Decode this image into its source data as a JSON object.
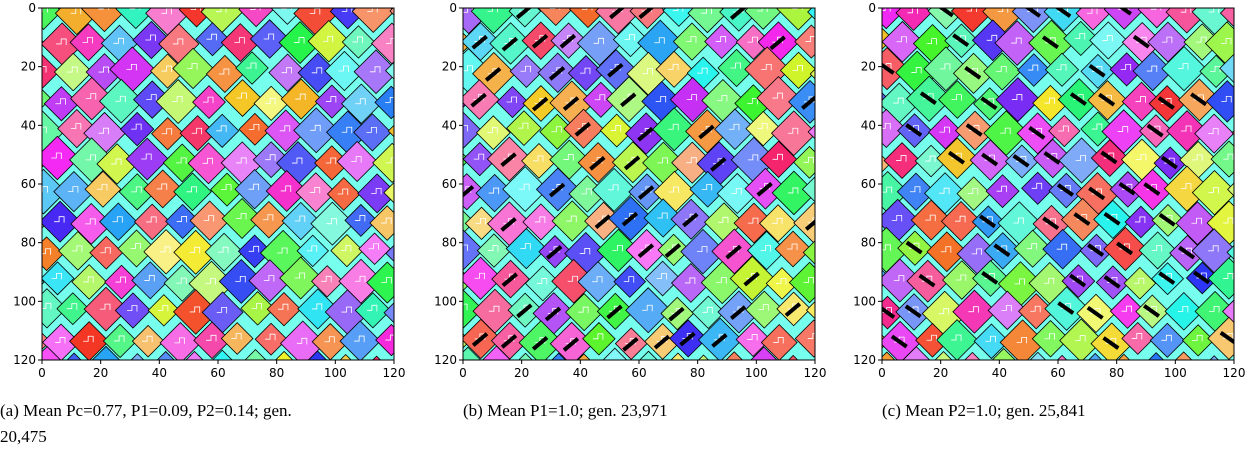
{
  "chart_data": [
    {
      "type": "image",
      "caption": "(a) Mean Pc=0.77, P1=0.09, P2=0.14; gen.",
      "caption_line2": "20,475",
      "xlim": [
        0,
        120
      ],
      "ylim": [
        0,
        120
      ],
      "y_inverted": true,
      "xticks": [
        0,
        20,
        40,
        60,
        80,
        100,
        120
      ],
      "yticks": [
        0,
        20,
        40,
        60,
        80,
        100,
        120
      ]
    },
    {
      "type": "image",
      "caption": "(b) Mean P1=1.0; gen. 23,971",
      "xlim": [
        0,
        120
      ],
      "ylim": [
        0,
        120
      ],
      "y_inverted": true,
      "xticks": [
        0,
        20,
        40,
        60,
        80,
        100,
        120
      ],
      "yticks": [
        0,
        20,
        40,
        60,
        80,
        100,
        120
      ]
    },
    {
      "type": "image",
      "caption": "(c) Mean P2=1.0; gen. 25,841",
      "xlim": [
        0,
        120
      ],
      "ylim": [
        0,
        120
      ],
      "y_inverted": true,
      "xticks": [
        0,
        20,
        40,
        60,
        80,
        100,
        120
      ],
      "yticks": [
        0,
        20,
        40,
        60,
        80,
        100,
        120
      ]
    }
  ]
}
